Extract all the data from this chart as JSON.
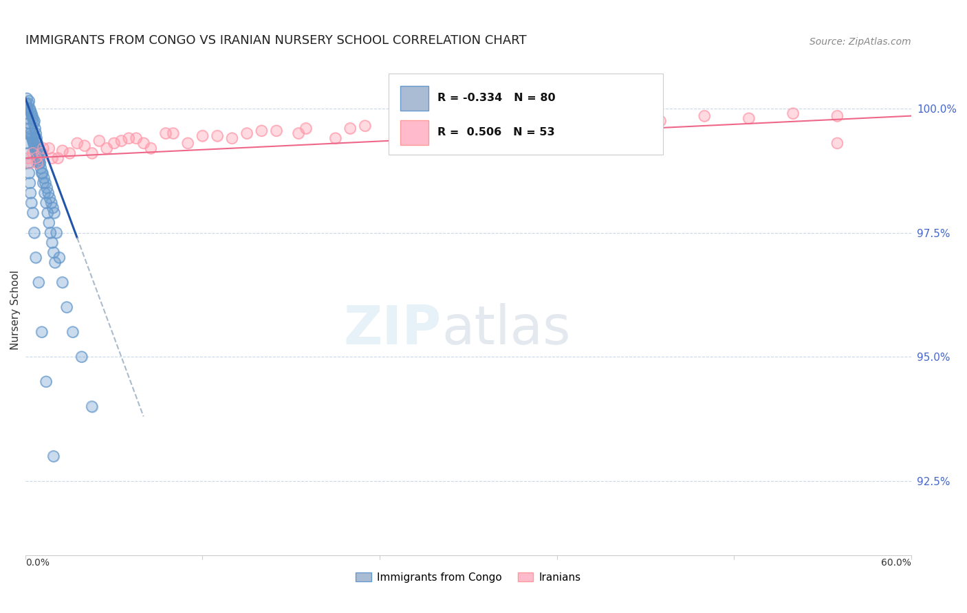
{
  "title": "IMMIGRANTS FROM CONGO VS IRANIAN NURSERY SCHOOL CORRELATION CHART",
  "source": "Source: ZipAtlas.com",
  "ylabel": "Nursery School",
  "y_ticks": [
    92.5,
    95.0,
    97.5,
    100.0
  ],
  "y_tick_labels": [
    "92.5%",
    "95.0%",
    "97.5%",
    "100.0%"
  ],
  "x_min": 0.0,
  "x_max": 60.0,
  "y_min": 91.0,
  "y_max": 100.9,
  "legend_labels_bottom": [
    "Immigrants from Congo",
    "Iranians"
  ],
  "congo_color": "#6699cc",
  "iran_color": "#ff99aa",
  "congo_R": -0.334,
  "iran_R": 0.506,
  "title_fontsize": 13,
  "source_fontsize": 10,
  "tick_color": "#4466cc",
  "grid_color": "#c8d8e8",
  "background_color": "#ffffff",
  "congo_scatter_x": [
    0.05,
    0.1,
    0.15,
    0.2,
    0.25,
    0.3,
    0.35,
    0.4,
    0.45,
    0.5,
    0.55,
    0.6,
    0.65,
    0.7,
    0.75,
    0.8,
    0.85,
    0.9,
    0.95,
    1.0,
    1.1,
    1.2,
    1.3,
    1.4,
    1.5,
    1.6,
    1.7,
    1.8,
    1.9,
    2.0,
    0.1,
    0.15,
    0.2,
    0.25,
    0.3,
    0.35,
    0.4,
    0.45,
    0.5,
    0.55,
    0.6,
    0.65,
    0.7,
    0.75,
    0.8,
    0.85,
    0.9,
    0.95,
    1.05,
    1.15,
    1.25,
    1.35,
    1.45,
    1.55,
    1.65,
    1.75,
    1.85,
    1.95,
    2.1,
    2.3,
    2.5,
    2.8,
    3.2,
    3.8,
    4.5,
    0.05,
    0.1,
    0.15,
    0.2,
    0.25,
    0.3,
    0.35,
    0.4,
    0.5,
    0.6,
    0.7,
    0.9,
    1.1,
    1.4,
    1.9
  ],
  "congo_scatter_y": [
    100.1,
    100.2,
    100.0,
    100.1,
    100.15,
    100.0,
    99.95,
    99.9,
    99.85,
    99.8,
    99.7,
    99.75,
    99.6,
    99.5,
    99.4,
    99.3,
    99.2,
    99.1,
    99.0,
    98.9,
    98.7,
    98.5,
    98.3,
    98.1,
    97.9,
    97.7,
    97.5,
    97.3,
    97.1,
    96.9,
    100.0,
    99.9,
    99.8,
    99.7,
    99.6,
    99.5,
    99.45,
    99.4,
    99.35,
    99.3,
    99.25,
    99.2,
    99.15,
    99.1,
    99.05,
    99.0,
    98.95,
    98.9,
    98.8,
    98.7,
    98.6,
    98.5,
    98.4,
    98.3,
    98.2,
    98.1,
    98.0,
    97.9,
    97.5,
    97.0,
    96.5,
    96.0,
    95.5,
    95.0,
    94.0,
    99.5,
    99.3,
    99.1,
    98.9,
    98.7,
    98.5,
    98.3,
    98.1,
    97.9,
    97.5,
    97.0,
    96.5,
    95.5,
    94.5,
    93.0
  ],
  "iran_scatter_x": [
    0.2,
    0.5,
    0.8,
    1.2,
    1.8,
    2.5,
    3.5,
    4.5,
    5.5,
    6.5,
    7.5,
    8.5,
    9.5,
    11.0,
    13.0,
    15.0,
    17.0,
    19.0,
    21.0,
    23.0,
    25.0,
    27.0,
    29.0,
    31.0,
    33.0,
    35.0,
    37.0,
    40.0,
    43.0,
    46.0,
    49.0,
    52.0,
    55.0,
    0.3,
    0.7,
    1.1,
    1.6,
    2.2,
    3.0,
    4.0,
    5.0,
    6.0,
    7.0,
    8.0,
    10.0,
    12.0,
    14.0,
    16.0,
    18.5,
    22.0,
    26.0,
    30.0,
    55.0
  ],
  "iran_scatter_y": [
    99.0,
    99.1,
    98.9,
    99.2,
    99.0,
    99.15,
    99.3,
    99.1,
    99.2,
    99.35,
    99.4,
    99.2,
    99.5,
    99.3,
    99.45,
    99.5,
    99.55,
    99.6,
    99.4,
    99.65,
    99.3,
    99.7,
    99.5,
    99.6,
    99.75,
    99.6,
    99.8,
    99.7,
    99.75,
    99.85,
    99.8,
    99.9,
    99.85,
    98.9,
    99.0,
    99.1,
    99.2,
    99.0,
    99.1,
    99.25,
    99.35,
    99.3,
    99.4,
    99.3,
    99.5,
    99.45,
    99.4,
    99.55,
    99.5,
    99.6,
    99.55,
    99.65,
    99.3
  ],
  "congo_trend_x0": 0.0,
  "congo_trend_y0": 100.2,
  "congo_trend_x1": 3.5,
  "congo_trend_y1": 97.4,
  "congo_dash_x0": 3.5,
  "congo_dash_y0": 97.4,
  "congo_dash_x1": 8.0,
  "congo_dash_y1": 93.8,
  "iran_trend_x0": 0.0,
  "iran_trend_y0": 99.0,
  "iran_trend_x1": 60.0,
  "iran_trend_y1": 99.85
}
